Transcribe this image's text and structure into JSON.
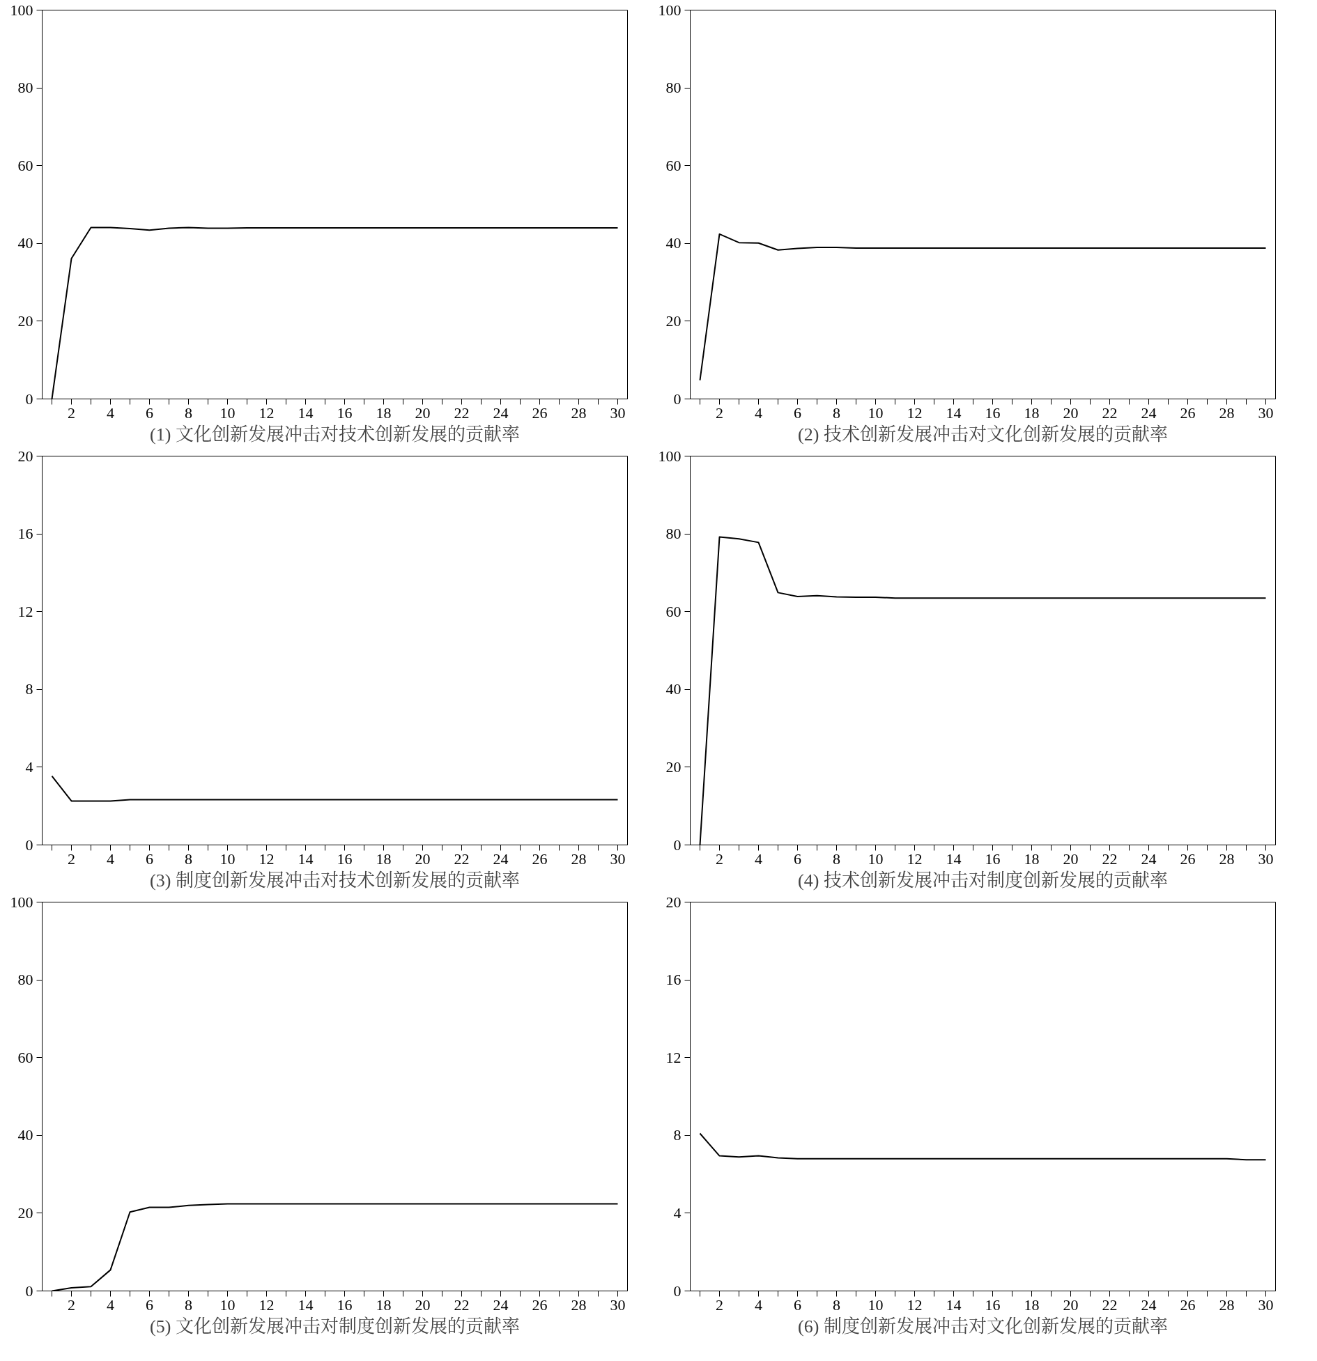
{
  "chart_data": [
    {
      "type": "line",
      "xlabel": "(1) 文化创新发展冲击对技术创新发展的贡献率",
      "x": [
        1,
        2,
        3,
        4,
        5,
        6,
        7,
        8,
        9,
        10,
        11,
        12,
        13,
        14,
        15,
        16,
        17,
        18,
        19,
        20,
        21,
        22,
        23,
        24,
        25,
        26,
        27,
        28,
        29,
        30
      ],
      "series": [
        {
          "color": "#000000",
          "values": [
            0,
            36.1,
            44.1,
            44.1,
            43.8,
            43.4,
            43.9,
            44.1,
            43.9,
            43.9,
            44.0,
            44.0,
            44.0,
            44.0,
            44.0,
            44.0,
            44.0,
            44.0,
            44.0,
            44.0,
            44.0,
            44.0,
            44.0,
            44.0,
            44.0,
            44.0,
            44.0,
            44.0,
            44.0,
            44.0
          ]
        }
      ],
      "xlim": [
        0.5,
        30.5
      ],
      "ylim": [
        0,
        100
      ],
      "yticks": [
        0,
        20,
        40,
        60,
        80,
        100
      ],
      "xticks": [
        {
          "value": 1,
          "label": null
        },
        2,
        {
          "value": 3,
          "label": null
        },
        4,
        {
          "value": 5,
          "label": null
        },
        6,
        {
          "value": 7,
          "label": null
        },
        8,
        {
          "value": 9,
          "label": null
        },
        10,
        {
          "value": 11,
          "label": null
        },
        12,
        {
          "value": 13,
          "label": null
        },
        14,
        {
          "value": 15,
          "label": null
        },
        16,
        {
          "value": 17,
          "label": null
        },
        18,
        {
          "value": 19,
          "label": null
        },
        20,
        {
          "value": 21,
          "label": null
        },
        22,
        {
          "value": 23,
          "label": null
        },
        24,
        {
          "value": 25,
          "label": null
        },
        26,
        {
          "value": 27,
          "label": null
        },
        28,
        {
          "value": 29,
          "label": null
        },
        30
      ],
      "grid": false,
      "line_style": "solid",
      "marker": "none"
    },
    {
      "type": "line",
      "xlabel": "(2) 技术创新发展冲击对文化创新发展的贡献率",
      "x": [
        1,
        2,
        3,
        4,
        5,
        6,
        7,
        8,
        9,
        10,
        11,
        12,
        13,
        14,
        15,
        16,
        17,
        18,
        19,
        20,
        21,
        22,
        23,
        24,
        25,
        26,
        27,
        28,
        29,
        30
      ],
      "series": [
        {
          "color": "#000000",
          "values": [
            4.8,
            42.4,
            40.2,
            40.1,
            38.3,
            38.7,
            39.0,
            39.0,
            38.8,
            38.8,
            38.8,
            38.8,
            38.8,
            38.8,
            38.8,
            38.8,
            38.8,
            38.8,
            38.8,
            38.8,
            38.8,
            38.8,
            38.8,
            38.8,
            38.8,
            38.8,
            38.8,
            38.8,
            38.8,
            38.8
          ]
        }
      ],
      "xlim": [
        0.5,
        30.5
      ],
      "ylim": [
        0,
        100
      ],
      "yticks": [
        0,
        20,
        40,
        60,
        80,
        100
      ],
      "xticks": [
        {
          "value": 1,
          "label": null
        },
        2,
        {
          "value": 3,
          "label": null
        },
        4,
        {
          "value": 5,
          "label": null
        },
        6,
        {
          "value": 7,
          "label": null
        },
        8,
        {
          "value": 9,
          "label": null
        },
        10,
        {
          "value": 11,
          "label": null
        },
        12,
        {
          "value": 13,
          "label": null
        },
        14,
        {
          "value": 15,
          "label": null
        },
        16,
        {
          "value": 17,
          "label": null
        },
        18,
        {
          "value": 19,
          "label": null
        },
        20,
        {
          "value": 21,
          "label": null
        },
        22,
        {
          "value": 23,
          "label": null
        },
        24,
        {
          "value": 25,
          "label": null
        },
        26,
        {
          "value": 27,
          "label": null
        },
        28,
        {
          "value": 29,
          "label": null
        },
        30
      ],
      "grid": false,
      "line_style": "solid",
      "marker": "none"
    },
    {
      "type": "line",
      "xlabel": "(3) 制度创新发展冲击对技术创新发展的贡献率",
      "x": [
        1,
        2,
        3,
        4,
        5,
        6,
        7,
        8,
        9,
        10,
        11,
        12,
        13,
        14,
        15,
        16,
        17,
        18,
        19,
        20,
        21,
        22,
        23,
        24,
        25,
        26,
        27,
        28,
        29,
        30
      ],
      "series": [
        {
          "color": "#000000",
          "values": [
            3.54,
            2.26,
            2.26,
            2.26,
            2.33,
            2.33,
            2.33,
            2.33,
            2.33,
            2.33,
            2.33,
            2.33,
            2.33,
            2.33,
            2.33,
            2.33,
            2.33,
            2.33,
            2.33,
            2.33,
            2.33,
            2.33,
            2.33,
            2.33,
            2.33,
            2.33,
            2.33,
            2.33,
            2.33,
            2.33
          ]
        }
      ],
      "xlim": [
        0.5,
        30.5
      ],
      "ylim": [
        0,
        20
      ],
      "yticks": [
        0,
        4,
        8,
        12,
        16,
        20
      ],
      "xticks": [
        {
          "value": 1,
          "label": null
        },
        2,
        {
          "value": 3,
          "label": null
        },
        4,
        {
          "value": 5,
          "label": null
        },
        6,
        {
          "value": 7,
          "label": null
        },
        8,
        {
          "value": 9,
          "label": null
        },
        10,
        {
          "value": 11,
          "label": null
        },
        12,
        {
          "value": 13,
          "label": null
        },
        14,
        {
          "value": 15,
          "label": null
        },
        16,
        {
          "value": 17,
          "label": null
        },
        18,
        {
          "value": 19,
          "label": null
        },
        20,
        {
          "value": 21,
          "label": null
        },
        22,
        {
          "value": 23,
          "label": null
        },
        24,
        {
          "value": 25,
          "label": null
        },
        26,
        {
          "value": 27,
          "label": null
        },
        28,
        {
          "value": 29,
          "label": null
        },
        30
      ],
      "grid": false,
      "line_style": "solid",
      "marker": "none"
    },
    {
      "type": "line",
      "xlabel": "(4) 技术创新发展冲击对制度创新发展的贡献率",
      "x": [
        1,
        2,
        3,
        4,
        5,
        6,
        7,
        8,
        9,
        10,
        11,
        12,
        13,
        14,
        15,
        16,
        17,
        18,
        19,
        20,
        21,
        22,
        23,
        24,
        25,
        26,
        27,
        28,
        29,
        30
      ],
      "series": [
        {
          "color": "#000000",
          "values": [
            0,
            79.2,
            78.7,
            77.8,
            64.9,
            63.9,
            64.1,
            63.8,
            63.7,
            63.7,
            63.5,
            63.5,
            63.5,
            63.5,
            63.5,
            63.5,
            63.5,
            63.5,
            63.5,
            63.5,
            63.5,
            63.5,
            63.5,
            63.5,
            63.5,
            63.5,
            63.5,
            63.5,
            63.5,
            63.5
          ]
        }
      ],
      "xlim": [
        0.5,
        30.5
      ],
      "ylim": [
        0,
        100
      ],
      "yticks": [
        0,
        20,
        40,
        60,
        80,
        100
      ],
      "xticks": [
        {
          "value": 1,
          "label": null
        },
        2,
        {
          "value": 3,
          "label": null
        },
        4,
        {
          "value": 5,
          "label": null
        },
        6,
        {
          "value": 7,
          "label": null
        },
        8,
        {
          "value": 9,
          "label": null
        },
        10,
        {
          "value": 11,
          "label": null
        },
        12,
        {
          "value": 13,
          "label": null
        },
        14,
        {
          "value": 15,
          "label": null
        },
        16,
        {
          "value": 17,
          "label": null
        },
        18,
        {
          "value": 19,
          "label": null
        },
        20,
        {
          "value": 21,
          "label": null
        },
        22,
        {
          "value": 23,
          "label": null
        },
        24,
        {
          "value": 25,
          "label": null
        },
        26,
        {
          "value": 27,
          "label": null
        },
        28,
        {
          "value": 29,
          "label": null
        },
        30
      ],
      "grid": false,
      "line_style": "solid",
      "marker": "none"
    },
    {
      "type": "line",
      "xlabel": "(5) 文化创新发展冲击对制度创新发展的贡献率",
      "x": [
        1,
        2,
        3,
        4,
        5,
        6,
        7,
        8,
        9,
        10,
        11,
        12,
        13,
        14,
        15,
        16,
        17,
        18,
        19,
        20,
        21,
        22,
        23,
        24,
        25,
        26,
        27,
        28,
        29,
        30
      ],
      "series": [
        {
          "color": "#000000",
          "values": [
            0,
            0.8,
            1.1,
            5.4,
            20.3,
            21.5,
            21.5,
            22.0,
            22.2,
            22.4,
            22.4,
            22.4,
            22.4,
            22.4,
            22.4,
            22.4,
            22.4,
            22.4,
            22.4,
            22.4,
            22.4,
            22.4,
            22.4,
            22.4,
            22.4,
            22.4,
            22.4,
            22.4,
            22.4,
            22.4
          ]
        }
      ],
      "xlim": [
        0.5,
        30.5
      ],
      "ylim": [
        0,
        100
      ],
      "yticks": [
        0,
        20,
        40,
        60,
        80,
        100
      ],
      "xticks": [
        {
          "value": 1,
          "label": null
        },
        2,
        {
          "value": 3,
          "label": null
        },
        4,
        {
          "value": 5,
          "label": null
        },
        6,
        {
          "value": 7,
          "label": null
        },
        8,
        {
          "value": 9,
          "label": null
        },
        10,
        {
          "value": 11,
          "label": null
        },
        12,
        {
          "value": 13,
          "label": null
        },
        14,
        {
          "value": 15,
          "label": null
        },
        16,
        {
          "value": 17,
          "label": null
        },
        18,
        {
          "value": 19,
          "label": null
        },
        20,
        {
          "value": 21,
          "label": null
        },
        22,
        {
          "value": 23,
          "label": null
        },
        24,
        {
          "value": 25,
          "label": null
        },
        26,
        {
          "value": 27,
          "label": null
        },
        28,
        {
          "value": 29,
          "label": null
        },
        30
      ],
      "grid": false,
      "line_style": "solid",
      "marker": "none"
    },
    {
      "type": "line",
      "xlabel": "(6) 制度创新发展冲击对文化创新发展的贡献率",
      "x": [
        1,
        2,
        3,
        4,
        5,
        6,
        7,
        8,
        9,
        10,
        11,
        12,
        13,
        14,
        15,
        16,
        17,
        18,
        19,
        20,
        21,
        22,
        23,
        24,
        25,
        26,
        27,
        28,
        29,
        30
      ],
      "series": [
        {
          "color": "#000000",
          "values": [
            8.1,
            6.95,
            6.89,
            6.95,
            6.85,
            6.8,
            6.8,
            6.8,
            6.8,
            6.8,
            6.8,
            6.8,
            6.8,
            6.8,
            6.8,
            6.8,
            6.8,
            6.8,
            6.8,
            6.8,
            6.8,
            6.8,
            6.8,
            6.8,
            6.8,
            6.8,
            6.8,
            6.8,
            6.75,
            6.75
          ]
        }
      ],
      "xlim": [
        0.5,
        30.5
      ],
      "ylim": [
        0,
        20
      ],
      "yticks": [
        0,
        4,
        8,
        12,
        16,
        20
      ],
      "xticks": [
        {
          "value": 1,
          "label": null
        },
        2,
        {
          "value": 3,
          "label": null
        },
        4,
        {
          "value": 5,
          "label": null
        },
        6,
        {
          "value": 7,
          "label": null
        },
        8,
        {
          "value": 9,
          "label": null
        },
        10,
        {
          "value": 11,
          "label": null
        },
        12,
        {
          "value": 13,
          "label": null
        },
        14,
        {
          "value": 15,
          "label": null
        },
        16,
        {
          "value": 17,
          "label": null
        },
        18,
        {
          "value": 19,
          "label": null
        },
        20,
        {
          "value": 21,
          "label": null
        },
        22,
        {
          "value": 23,
          "label": null
        },
        24,
        {
          "value": 25,
          "label": null
        },
        26,
        {
          "value": 27,
          "label": null
        },
        28,
        {
          "value": 29,
          "label": null
        },
        30
      ],
      "grid": false,
      "line_style": "solid",
      "marker": "none"
    }
  ]
}
